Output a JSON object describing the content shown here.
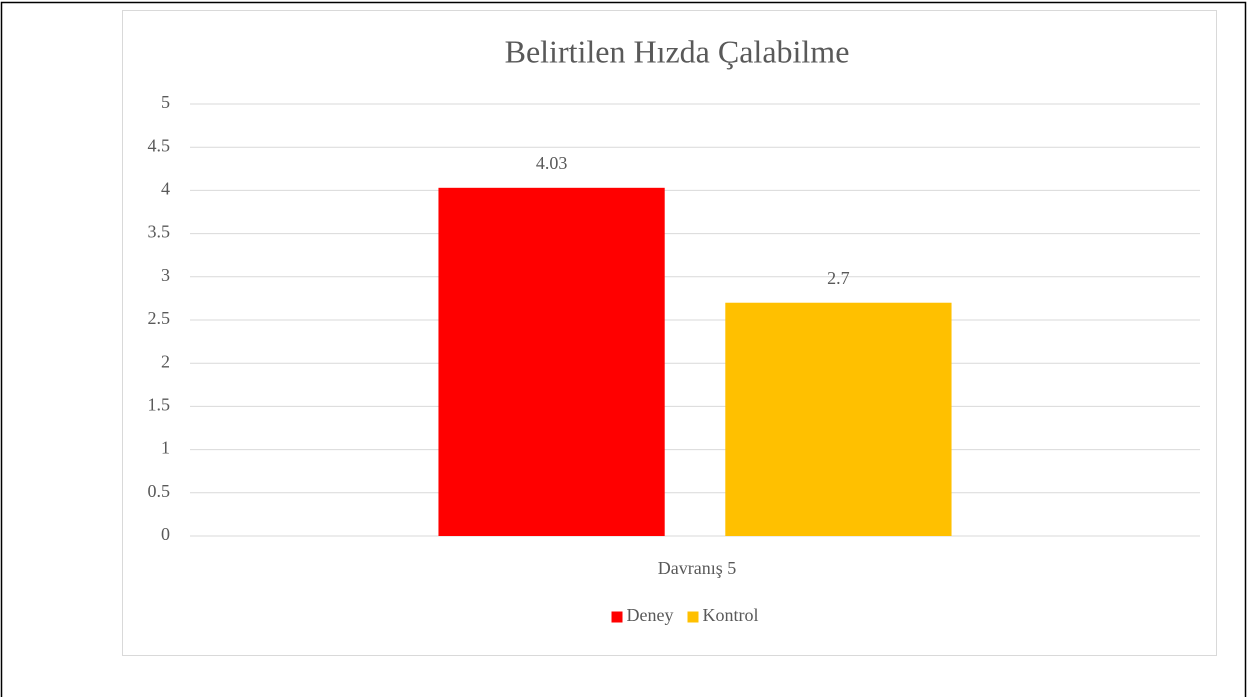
{
  "chart_data": {
    "type": "bar",
    "title": "Belirtilen Hızda Çalabilme",
    "categories": [
      "Davranış 5"
    ],
    "series": [
      {
        "name": "Deney",
        "color": "#ff0000",
        "values": [
          4.03
        ]
      },
      {
        "name": "Kontrol",
        "color": "#ffc000",
        "values": [
          2.7
        ]
      }
    ],
    "ylim": [
      0,
      5
    ],
    "yticks": [
      0,
      0.5,
      1,
      1.5,
      2,
      2.5,
      3,
      3.5,
      4,
      4.5,
      5
    ],
    "grid": true,
    "legend": "bottom"
  }
}
